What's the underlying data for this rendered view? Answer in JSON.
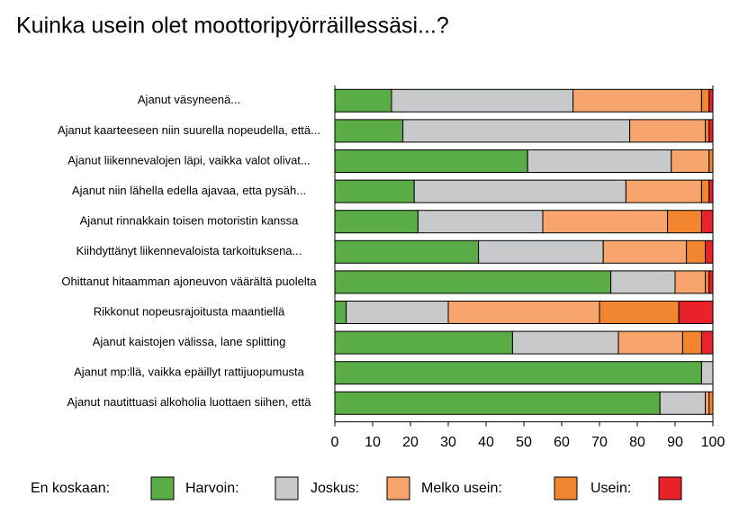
{
  "chart_data": {
    "type": "stacked-barh",
    "title": "Kuinka usein olet moottoripyörräillessäsi...?",
    "categories": [
      "Ajanut väsyneenä...",
      "Ajanut kaarteeseen niin suurella nopeudella, että...",
      "Ajanut liikennevalojen läpi, vaikka valot olivat...",
      "Ajanut niin lähella edella ajavaa, etta pysäh...",
      "Ajanut rinnakkain toisen motoristin kanssa",
      "Kiihdyttänyt liikennevaloista tarkoituksena...",
      "Ohittanut hitaamman ajoneuvon väärältä puolelta",
      "Rikkonut nopeusrajoitusta maantiellä",
      "Ajanut kaistojen välissa, lane splitting",
      "Ajanut mp:llä, vaikka epäillyt rattijuopumusta",
      "Ajanut nautittuasi alkoholia luottaen siihen, että"
    ],
    "series": [
      {
        "name": "En koskaan:",
        "color": "#5aad46",
        "values": [
          15,
          18,
          51,
          21,
          22,
          38,
          73,
          3,
          47,
          97,
          86
        ]
      },
      {
        "name": "Harvoin:",
        "color": "#c8c9cb",
        "values": [
          48,
          60,
          38,
          56,
          33,
          33,
          17,
          27,
          28,
          3,
          12
        ]
      },
      {
        "name": "Joskus:",
        "color": "#f7a56c",
        "values": [
          34,
          20,
          10,
          20,
          33,
          22,
          8,
          40,
          17,
          0,
          1
        ]
      },
      {
        "name": "Melko usein:",
        "color": "#f28630",
        "values": [
          2,
          1,
          1,
          2,
          9,
          5,
          1,
          21,
          5,
          0,
          1
        ]
      },
      {
        "name": "Usein:",
        "color": "#e8212a",
        "values": [
          1,
          1,
          0,
          1,
          3,
          2,
          1,
          9,
          3,
          0,
          0
        ]
      }
    ],
    "xlim": [
      0,
      100
    ],
    "xticks": [
      0,
      10,
      20,
      30,
      40,
      50,
      60,
      70,
      80,
      90,
      100
    ]
  }
}
